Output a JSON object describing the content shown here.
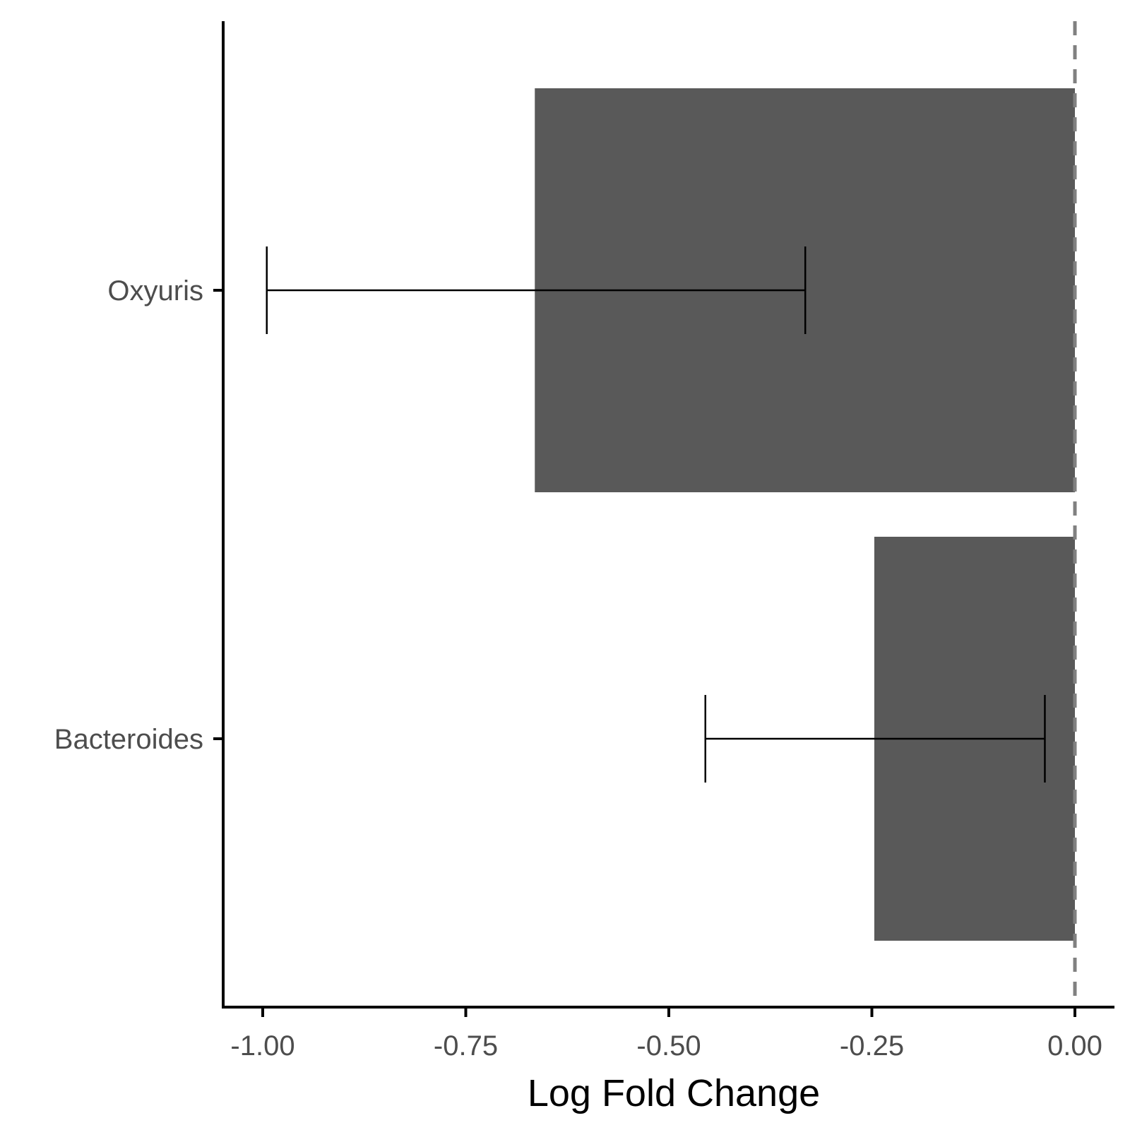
{
  "chart_data": {
    "type": "bar",
    "orientation": "horizontal",
    "categories": [
      "Oxyuris",
      "Bacteroides"
    ],
    "values": [
      -0.665,
      -0.247
    ],
    "error_low": [
      -0.995,
      -0.455
    ],
    "error_high": [
      -0.332,
      -0.037
    ],
    "xlabel": "Log Fold Change",
    "ylabel": "",
    "xlim": [
      -1.05,
      0.05
    ],
    "xticks": [
      -1.0,
      -0.75,
      -0.5,
      -0.25,
      0.0
    ],
    "xtick_labels": [
      "-1.00",
      "-0.75",
      "-0.50",
      "-0.25",
      "0.00"
    ],
    "reference_line": 0.0,
    "grid": false,
    "legend": "none",
    "colors": {
      "bar": "#595959",
      "reference_line": "#808080",
      "axis": "#000000",
      "tick_text": "#4d4d4d"
    }
  }
}
